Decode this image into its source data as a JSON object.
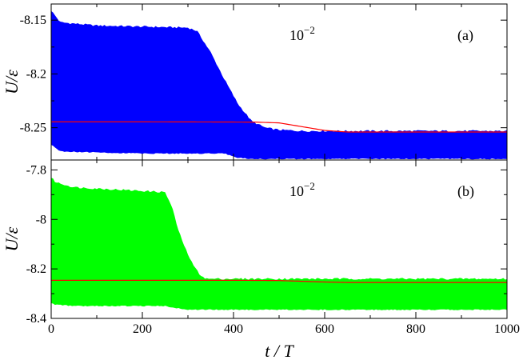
{
  "chart_data": [
    {
      "type": "area",
      "panel_label": "(a)",
      "annotation": {
        "base": "10",
        "exponent": "−2"
      },
      "ylabel": "U/ε",
      "xlim": [
        0,
        1000
      ],
      "ylim": [
        -8.28,
        -8.135
      ],
      "yticks": [
        -8.15,
        -8.2,
        -8.25
      ],
      "ytick_labels": [
        "-8.15",
        "-8.2",
        "-8.25"
      ],
      "fill_color": "#0000ff",
      "line_color": "#ff0000",
      "series": [
        {
          "role": "band",
          "x": [
            0,
            20,
            100,
            200,
            300,
            320,
            350,
            380,
            410,
            440,
            470,
            500,
            550,
            600,
            700,
            800,
            900,
            1000
          ],
          "upper": [
            -8.141,
            -8.152,
            -8.155,
            -8.156,
            -8.157,
            -8.16,
            -8.18,
            -8.205,
            -8.228,
            -8.244,
            -8.25,
            -8.252,
            -8.253,
            -8.253,
            -8.253,
            -8.253,
            -8.253,
            -8.253
          ],
          "lower": [
            -8.266,
            -8.272,
            -8.273,
            -8.274,
            -8.274,
            -8.274,
            -8.274,
            -8.274,
            -8.278,
            -8.279,
            -8.279,
            -8.279,
            -8.279,
            -8.279,
            -8.279,
            -8.279,
            -8.279,
            -8.279
          ]
        },
        {
          "role": "average",
          "x": [
            0,
            100,
            200,
            300,
            400,
            450,
            500,
            550,
            600,
            650,
            700,
            800,
            900,
            1000
          ],
          "y": [
            -8.2445,
            -8.2445,
            -8.2445,
            -8.2446,
            -8.2447,
            -8.2448,
            -8.2455,
            -8.249,
            -8.2525,
            -8.254,
            -8.254,
            -8.254,
            -8.254,
            -8.254
          ]
        }
      ]
    },
    {
      "type": "area",
      "panel_label": "(b)",
      "annotation": {
        "base": "10",
        "exponent": "−2"
      },
      "ylabel": "U/ε",
      "xlabel": "t / T",
      "xlim": [
        0,
        1000
      ],
      "xticks": [
        0,
        200,
        400,
        600,
        800,
        1000
      ],
      "xtick_labels": [
        "0",
        "200",
        "400",
        "600",
        "800",
        "1000"
      ],
      "ylim": [
        -8.4,
        -7.76
      ],
      "yticks": [
        -7.8,
        -8.0,
        -8.2,
        -8.4
      ],
      "ytick_labels": [
        "-7.8",
        "-8",
        "-8.2",
        "-8.4"
      ],
      "fill_color": "#00ff00",
      "line_color": "#ff0000",
      "series": [
        {
          "role": "band",
          "x": [
            0,
            10,
            50,
            150,
            250,
            265,
            280,
            295,
            310,
            325,
            340,
            380,
            500,
            700,
            1000
          ],
          "upper": [
            -7.83,
            -7.85,
            -7.87,
            -7.88,
            -7.89,
            -7.95,
            -8.05,
            -8.12,
            -8.18,
            -8.22,
            -8.24,
            -8.24,
            -8.24,
            -8.24,
            -8.24
          ],
          "lower": [
            -8.34,
            -8.345,
            -8.35,
            -8.35,
            -8.35,
            -8.355,
            -8.36,
            -8.365,
            -8.365,
            -8.365,
            -8.365,
            -8.365,
            -8.365,
            -8.365,
            -8.365
          ]
        },
        {
          "role": "average",
          "x": [
            0,
            200,
            400,
            500,
            550,
            600,
            650,
            700,
            800,
            1000
          ],
          "y": [
            -8.246,
            -8.246,
            -8.246,
            -8.247,
            -8.25,
            -8.253,
            -8.255,
            -8.255,
            -8.255,
            -8.255
          ]
        }
      ]
    }
  ]
}
